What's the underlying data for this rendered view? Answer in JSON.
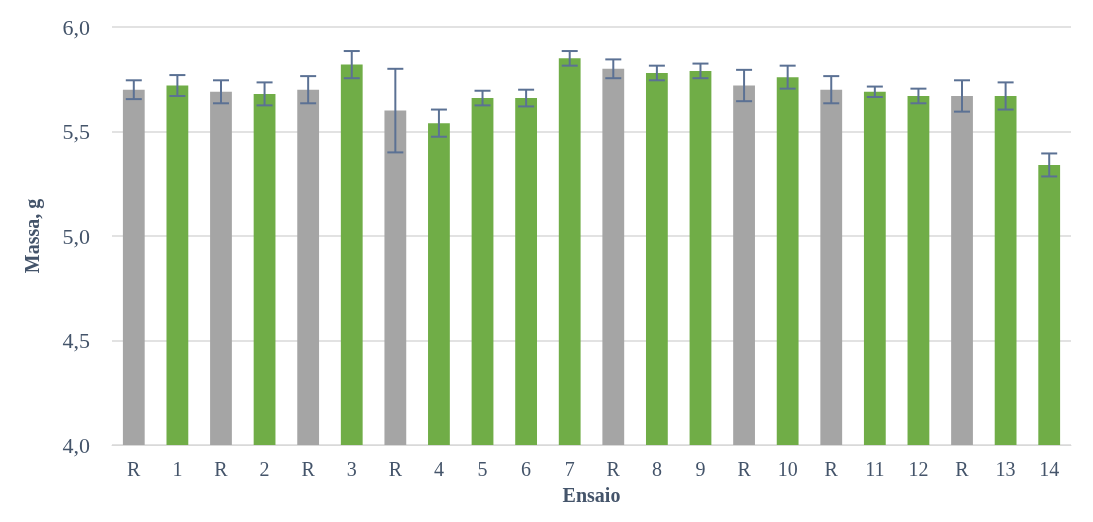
{
  "chart_data": {
    "type": "bar",
    "xlabel": "Ensaio",
    "ylabel": "Massa, g",
    "categories": [
      "R",
      "1",
      "R",
      "2",
      "R",
      "3",
      "R",
      "4",
      "5",
      "6",
      "7",
      "R",
      "8",
      "9",
      "R",
      "10",
      "R",
      "11",
      "12",
      "R",
      "13",
      "14"
    ],
    "values": [
      5.7,
      5.72,
      5.69,
      5.68,
      5.7,
      5.82,
      5.6,
      5.54,
      5.66,
      5.66,
      5.85,
      5.8,
      5.78,
      5.79,
      5.72,
      5.76,
      5.7,
      5.69,
      5.67,
      5.67,
      5.67,
      5.34
    ],
    "errors": [
      0.045,
      0.05,
      0.055,
      0.055,
      0.065,
      0.065,
      0.2,
      0.065,
      0.035,
      0.04,
      0.035,
      0.045,
      0.035,
      0.035,
      0.075,
      0.055,
      0.065,
      0.025,
      0.035,
      0.075,
      0.065,
      0.055
    ],
    "colors": [
      "#a5a5a5",
      "#70ad47",
      "#a5a5a5",
      "#70ad47",
      "#a5a5a5",
      "#70ad47",
      "#a5a5a5",
      "#70ad47",
      "#70ad47",
      "#70ad47",
      "#70ad47",
      "#a5a5a5",
      "#70ad47",
      "#70ad47",
      "#a5a5a5",
      "#70ad47",
      "#a5a5a5",
      "#70ad47",
      "#70ad47",
      "#a5a5a5",
      "#70ad47",
      "#70ad47"
    ],
    "ylim": [
      4.0,
      6.0
    ],
    "yticks": [
      {
        "value": 4.0,
        "label": "4,0"
      },
      {
        "value": 4.5,
        "label": "4,5"
      },
      {
        "value": 5.0,
        "label": "5,0"
      },
      {
        "value": 5.5,
        "label": "5,5"
      },
      {
        "value": 6.0,
        "label": "6,0"
      }
    ],
    "grid": "y"
  }
}
